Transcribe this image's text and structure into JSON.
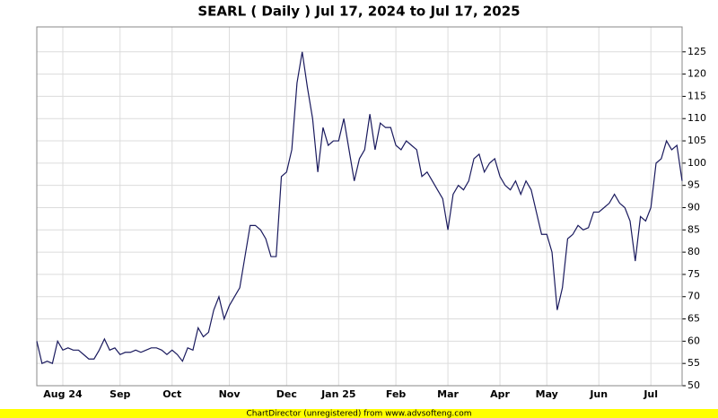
{
  "chart_data": {
    "type": "line",
    "title": "SEARL ( Daily ) Jul 17, 2024 to Jul 17, 2025",
    "categories": [
      null,
      null,
      null,
      null,
      null,
      "Aug 24",
      null,
      null,
      null,
      null,
      null,
      null,
      null,
      null,
      null,
      null,
      "Sep",
      null,
      null,
      null,
      null,
      null,
      null,
      null,
      null,
      null,
      "Oct",
      null,
      null,
      null,
      null,
      null,
      null,
      null,
      null,
      null,
      null,
      "Nov",
      null,
      null,
      null,
      null,
      null,
      null,
      null,
      null,
      null,
      null,
      "Dec",
      null,
      null,
      null,
      null,
      null,
      null,
      null,
      null,
      null,
      "Jan 25",
      null,
      null,
      null,
      null,
      null,
      null,
      null,
      null,
      null,
      null,
      "Feb",
      null,
      null,
      null,
      null,
      null,
      null,
      null,
      null,
      null,
      "Mar",
      null,
      null,
      null,
      null,
      null,
      null,
      null,
      null,
      null,
      "Apr",
      null,
      null,
      null,
      null,
      null,
      null,
      null,
      null,
      "May",
      null,
      null,
      null,
      null,
      null,
      null,
      null,
      null,
      null,
      "Jun",
      null,
      null,
      null,
      null,
      null,
      null,
      null,
      null,
      null,
      "Jul",
      null,
      null,
      null,
      null,
      null,
      null
    ],
    "series": [
      {
        "color": "#1a1a5e",
        "values": [
          60,
          55,
          55.5,
          55,
          60,
          58,
          58.5,
          58,
          58,
          57,
          56,
          56,
          58,
          60.5,
          58,
          58.5,
          57,
          57.5,
          57.5,
          58,
          57.5,
          58,
          58.5,
          58.5,
          58,
          57,
          58,
          57,
          55.5,
          58.5,
          58,
          63,
          61,
          62,
          67,
          70,
          65,
          68,
          70,
          72,
          79,
          86,
          86,
          85,
          83,
          79,
          79,
          97,
          98,
          103,
          118,
          125,
          117,
          110,
          98,
          108,
          104,
          105,
          105,
          110,
          103,
          96,
          101,
          103,
          111,
          103,
          109,
          108,
          108,
          104,
          103,
          105,
          104,
          103,
          97,
          98,
          96,
          94,
          92,
          85,
          93,
          95,
          94,
          96,
          101,
          102,
          98,
          100,
          101,
          97,
          95,
          94,
          96,
          93,
          96,
          94,
          89,
          84,
          84,
          80,
          67,
          72,
          83,
          84,
          86,
          85,
          85.5,
          89,
          89,
          90,
          91,
          93,
          91,
          90,
          87,
          78,
          88,
          87,
          90,
          100,
          101,
          105,
          103,
          104,
          96
        ]
      }
    ],
    "ylim": [
      50,
      130.6
    ],
    "yticks": [
      50,
      55,
      60,
      65,
      70,
      75,
      80,
      85,
      90,
      95,
      100,
      105,
      110,
      115,
      120,
      125
    ],
    "grid": true
  },
  "footer": "ChartDirector (unregistered) from www.advsofteng.com"
}
